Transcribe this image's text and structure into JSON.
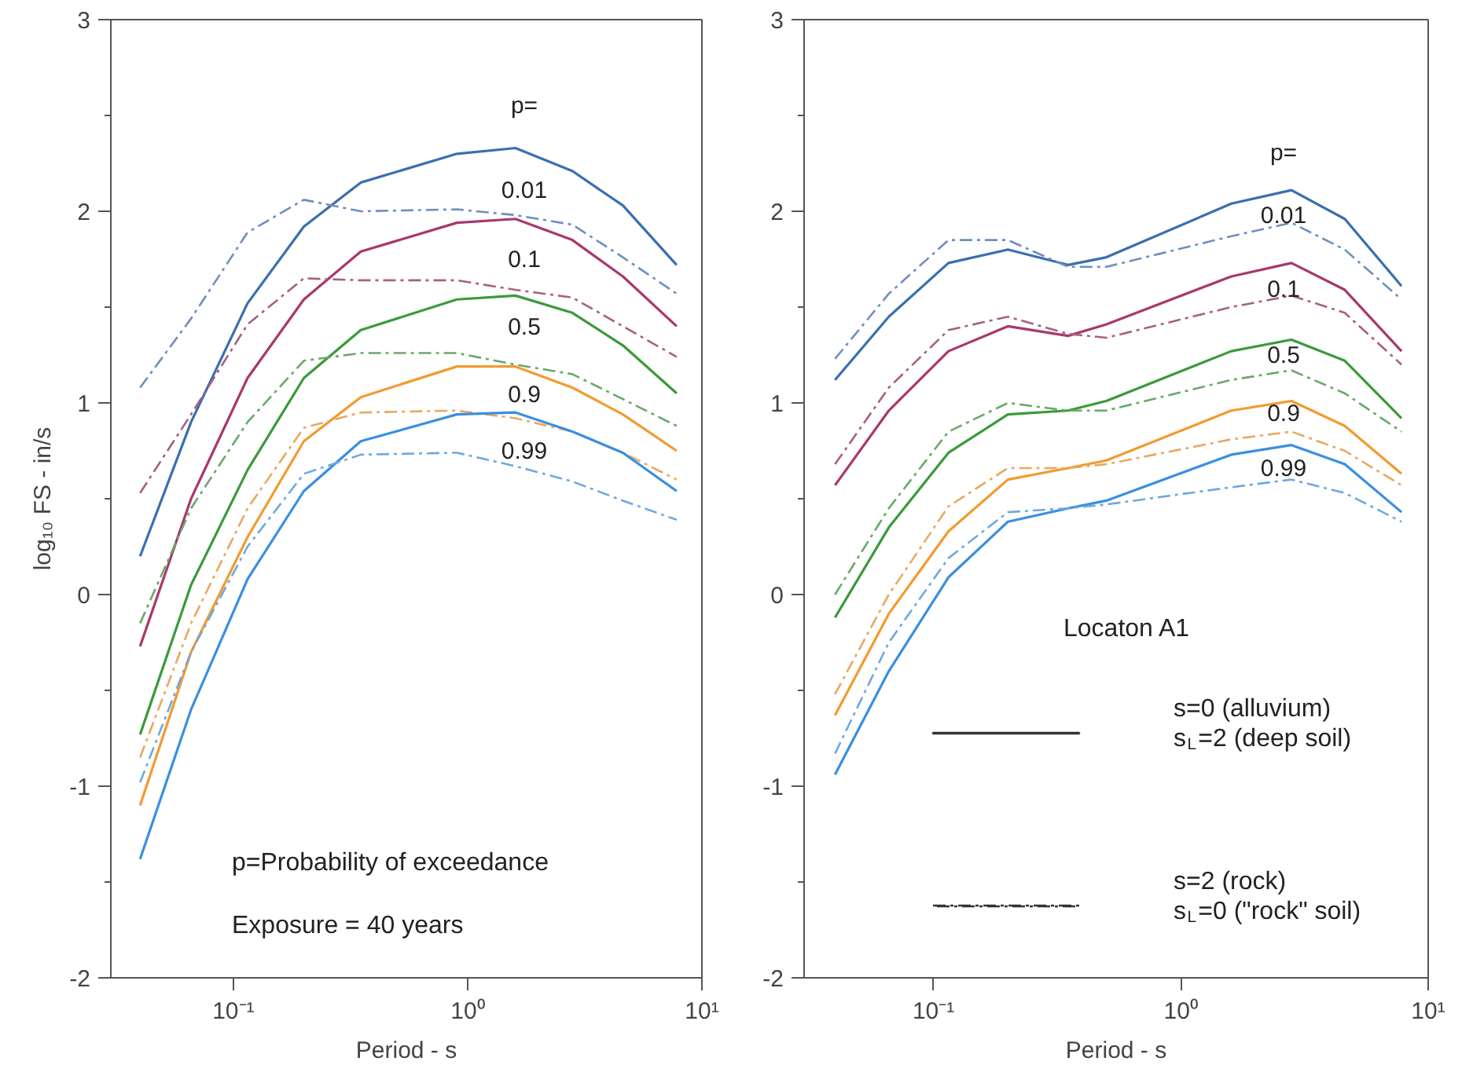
{
  "chart_data": [
    {
      "type": "line",
      "ylabel": "log₁₀ FS - in/s",
      "xlabel": "Period - s",
      "log": "x",
      "xlim": [
        0.03,
        10
      ],
      "ylim": [
        -2,
        3
      ],
      "xticks": [
        {
          "value": 0.1,
          "label": "10⁻¹"
        },
        {
          "value": 1,
          "label": "10⁰"
        },
        {
          "value": 10,
          "label": "10¹"
        }
      ],
      "yticks": [
        -2,
        {
          "value": -1.5,
          "label": null
        },
        -1,
        {
          "value": -0.5,
          "label": null
        },
        0,
        {
          "value": 0.5,
          "label": null
        },
        1,
        {
          "value": 1.5,
          "label": null
        },
        2,
        {
          "value": 2.5,
          "label": null
        },
        3
      ],
      "grid": false,
      "marker": "none",
      "x": [
        0.04,
        0.066,
        0.115,
        0.2,
        0.35,
        0.9,
        1.6,
        2.8,
        4.6,
        7.8
      ],
      "series": [
        {
          "color": "#3a6fb0",
          "line_style": "solid",
          "values": [
            0.2,
            0.9,
            1.52,
            1.92,
            2.15,
            2.3,
            2.33,
            2.21,
            2.03,
            1.72
          ]
        },
        {
          "color": "#6f8fbf",
          "line_style": "dashdot",
          "values": [
            1.08,
            1.44,
            1.89,
            2.06,
            2.0,
            2.01,
            1.98,
            1.93,
            1.76,
            1.57
          ]
        },
        {
          "color": "#a8386b",
          "line_style": "solid",
          "values": [
            -0.27,
            0.5,
            1.13,
            1.54,
            1.79,
            1.94,
            1.96,
            1.85,
            1.66,
            1.4
          ]
        },
        {
          "color": "#a8607f",
          "line_style": "dashdot",
          "values": [
            0.53,
            0.94,
            1.41,
            1.65,
            1.64,
            1.64,
            1.59,
            1.55,
            1.4,
            1.24
          ]
        },
        {
          "color": "#3a9a3a",
          "line_style": "solid",
          "values": [
            -0.73,
            0.05,
            0.65,
            1.13,
            1.38,
            1.54,
            1.56,
            1.47,
            1.3,
            1.05
          ]
        },
        {
          "color": "#6aa86a",
          "line_style": "dashdot",
          "values": [
            -0.15,
            0.45,
            0.9,
            1.22,
            1.26,
            1.26,
            1.2,
            1.15,
            1.02,
            0.88
          ]
        },
        {
          "color": "#f29b30",
          "line_style": "solid",
          "values": [
            -1.1,
            -0.3,
            0.3,
            0.8,
            1.03,
            1.19,
            1.19,
            1.08,
            0.94,
            0.75
          ]
        },
        {
          "color": "#e8a860",
          "line_style": "dashdot",
          "values": [
            -0.85,
            -0.15,
            0.45,
            0.87,
            0.95,
            0.96,
            0.92,
            0.85,
            0.74,
            0.6
          ]
        },
        {
          "color": "#3a8fe0",
          "line_style": "solid",
          "values": [
            -1.38,
            -0.6,
            0.08,
            0.54,
            0.8,
            0.94,
            0.95,
            0.85,
            0.74,
            0.54
          ]
        },
        {
          "color": "#6fa8e0",
          "line_style": "dashdot",
          "values": [
            -0.98,
            -0.3,
            0.25,
            0.63,
            0.73,
            0.74,
            0.67,
            0.59,
            0.49,
            0.39
          ]
        }
      ],
      "annotations": [
        "p=",
        "0.01",
        "0.1",
        "0.5",
        "0.9",
        "0.99",
        "p=Probability of exceedance",
        "Exposure = 40 years"
      ]
    },
    {
      "type": "line",
      "xlabel": "Period - s",
      "log": "x",
      "xlim": [
        0.03,
        10
      ],
      "ylim": [
        -2,
        3
      ],
      "xticks": [
        {
          "value": 0.1,
          "label": "10⁻¹"
        },
        {
          "value": 1,
          "label": "10⁰"
        },
        {
          "value": 10,
          "label": "10¹"
        }
      ],
      "yticks": [
        -2,
        {
          "value": -1.5,
          "label": null
        },
        -1,
        {
          "value": -0.5,
          "label": null
        },
        0,
        {
          "value": 0.5,
          "label": null
        },
        1,
        {
          "value": 1.5,
          "label": null
        },
        2,
        {
          "value": 2.5,
          "label": null
        },
        3
      ],
      "grid": false,
      "marker": "none",
      "x": [
        0.04,
        0.066,
        0.115,
        0.2,
        0.35,
        0.5,
        1.6,
        2.8,
        4.6,
        7.8
      ],
      "series": [
        {
          "color": "#3a6fb0",
          "line_style": "solid",
          "values": [
            1.12,
            1.45,
            1.73,
            1.8,
            1.72,
            1.76,
            2.04,
            2.11,
            1.96,
            1.61
          ]
        },
        {
          "color": "#6f8fbf",
          "line_style": "dashdot",
          "values": [
            1.23,
            1.57,
            1.85,
            1.85,
            1.71,
            1.71,
            1.87,
            1.94,
            1.8,
            1.54
          ]
        },
        {
          "color": "#a8386b",
          "line_style": "solid",
          "values": [
            0.57,
            0.96,
            1.27,
            1.4,
            1.35,
            1.41,
            1.66,
            1.73,
            1.59,
            1.27
          ]
        },
        {
          "color": "#a8607f",
          "line_style": "dashdot",
          "values": [
            0.68,
            1.08,
            1.38,
            1.45,
            1.36,
            1.34,
            1.5,
            1.56,
            1.47,
            1.2
          ]
        },
        {
          "color": "#3a9a3a",
          "line_style": "solid",
          "values": [
            -0.12,
            0.35,
            0.74,
            0.94,
            0.96,
            1.01,
            1.27,
            1.33,
            1.22,
            0.92
          ]
        },
        {
          "color": "#6aa86a",
          "line_style": "dashdot",
          "values": [
            0.0,
            0.45,
            0.85,
            1.0,
            0.96,
            0.96,
            1.12,
            1.17,
            1.05,
            0.85
          ]
        },
        {
          "color": "#f29b30",
          "line_style": "solid",
          "values": [
            -0.63,
            -0.1,
            0.33,
            0.6,
            0.66,
            0.7,
            0.96,
            1.01,
            0.88,
            0.63
          ]
        },
        {
          "color": "#e8a860",
          "line_style": "dashdot",
          "values": [
            -0.52,
            0.0,
            0.46,
            0.66,
            0.66,
            0.68,
            0.81,
            0.85,
            0.75,
            0.57
          ]
        },
        {
          "color": "#3a8fe0",
          "line_style": "solid",
          "values": [
            -0.94,
            -0.4,
            0.09,
            0.38,
            0.45,
            0.49,
            0.73,
            0.78,
            0.68,
            0.43
          ]
        },
        {
          "color": "#6fa8e0",
          "line_style": "dashdot",
          "values": [
            -0.83,
            -0.25,
            0.19,
            0.43,
            0.45,
            0.47,
            0.56,
            0.6,
            0.53,
            0.38
          ]
        }
      ],
      "annotations": [
        "p=",
        "0.01",
        "0.1",
        "0.5",
        "0.9",
        "0.99",
        "Locaton A1",
        "s=0 (alluvium)\ns$_{L}$=2 (deep soil)",
        "s=2 (rock)\ns$_{L}$=0 (\"rock\" soil)"
      ]
    }
  ]
}
